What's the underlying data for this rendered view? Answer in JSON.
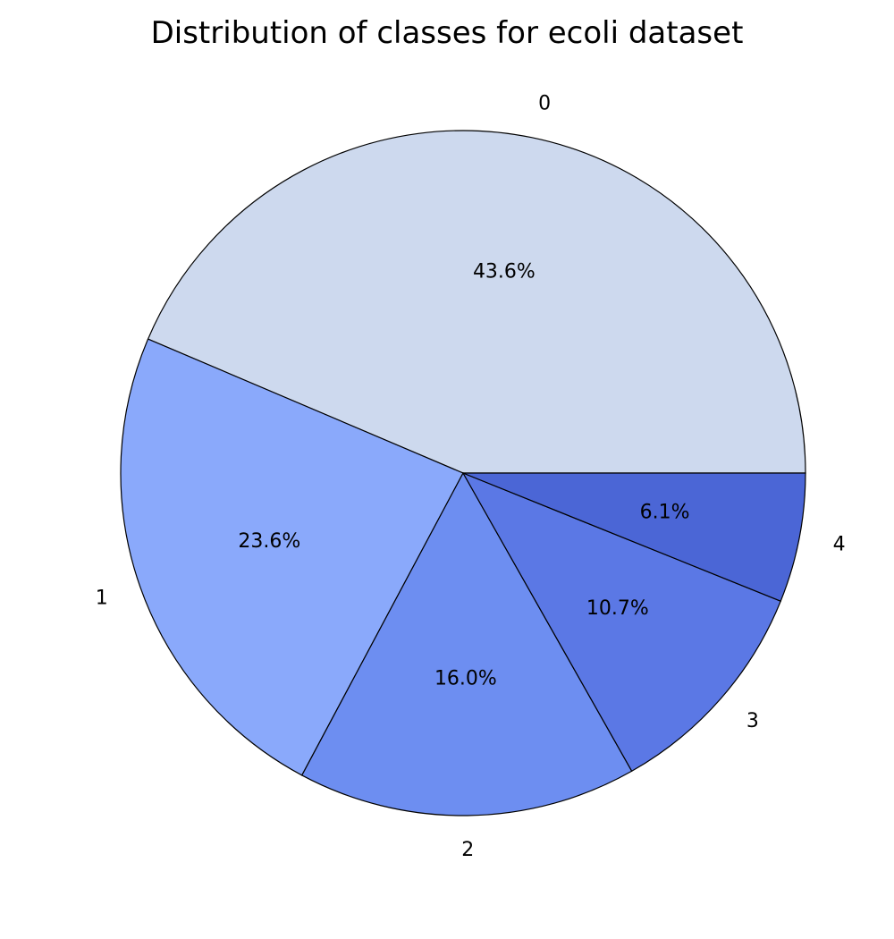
{
  "chart_data": {
    "type": "pie",
    "title": "Distribution of classes for ecoli dataset",
    "slices": [
      {
        "label": "0",
        "value": 43.6,
        "pct_text": "43.6%",
        "color": "#cdd9ee"
      },
      {
        "label": "1",
        "value": 23.6,
        "pct_text": "23.6%",
        "color": "#8aa9fb"
      },
      {
        "label": "2",
        "value": 16.0,
        "pct_text": "16.0%",
        "color": "#6d8ef1"
      },
      {
        "label": "3",
        "value": 10.7,
        "pct_text": "10.7%",
        "color": "#5b78e5"
      },
      {
        "label": "4",
        "value": 6.1,
        "pct_text": "6.1%",
        "color": "#4b66d6"
      }
    ],
    "start_angle_deg": 0,
    "direction": "counterclockwise",
    "edge_color": "#000000"
  }
}
